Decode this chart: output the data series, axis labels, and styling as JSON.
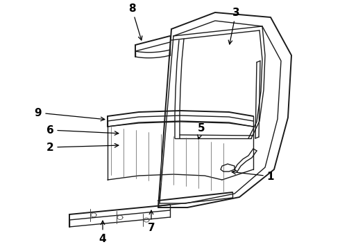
{
  "background_color": "#ffffff",
  "line_color": "#1a1a1a",
  "label_color": "#000000",
  "lw_main": 1.0,
  "lw_thick": 1.4,
  "lw_thin": 0.6,
  "labels_info": [
    [
      "1",
      390,
      255,
      330,
      248
    ],
    [
      "2",
      72,
      213,
      175,
      210
    ],
    [
      "3",
      340,
      18,
      330,
      68
    ],
    [
      "4",
      148,
      345,
      148,
      315
    ],
    [
      "5",
      290,
      185,
      285,
      205
    ],
    [
      "6",
      72,
      188,
      175,
      193
    ],
    [
      "7",
      218,
      330,
      218,
      300
    ],
    [
      "8",
      190,
      12,
      205,
      62
    ],
    [
      "9",
      55,
      163,
      155,
      173
    ]
  ]
}
